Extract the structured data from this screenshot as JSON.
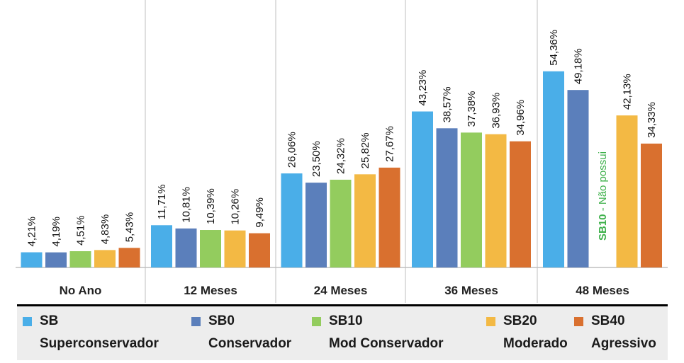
{
  "chart_data": {
    "type": "bar",
    "categories": [
      "No Ano",
      "12 Meses",
      "24 Meses",
      "36 Meses",
      "48 Meses"
    ],
    "series": [
      {
        "name": "SB",
        "description": "Superconservador",
        "color": "#4aaee8",
        "values": [
          4.21,
          11.71,
          26.06,
          43.23,
          54.36
        ],
        "labels": [
          "4,21%",
          "11,71%",
          "26,06%",
          "43,23%",
          "54,36%"
        ]
      },
      {
        "name": "SB0",
        "description": "Conservador",
        "color": "#5b7fbb",
        "values": [
          4.19,
          10.81,
          23.5,
          38.57,
          49.18
        ],
        "labels": [
          "4,19%",
          "10,81%",
          "23,50%",
          "38,57%",
          "49,18%"
        ]
      },
      {
        "name": "SB10",
        "description": "Mod Conservador",
        "color": "#93cc5e",
        "values": [
          4.51,
          10.39,
          24.32,
          37.38,
          null
        ],
        "labels": [
          "4,51%",
          "10,39%",
          "24,32%",
          "37,38%",
          ""
        ]
      },
      {
        "name": "SB20",
        "description": "Moderado",
        "color": "#f3b944",
        "values": [
          4.83,
          10.26,
          25.82,
          36.93,
          42.13
        ],
        "labels": [
          "4,83%",
          "10,26%",
          "25,82%",
          "36,93%",
          "42,13%"
        ]
      },
      {
        "name": "SB40",
        "description": "Agressivo",
        "color": "#d9702f",
        "values": [
          5.43,
          9.49,
          27.67,
          34.96,
          34.33
        ],
        "labels": [
          "5,43%",
          "9,49%",
          "27,67%",
          "34,96%",
          "34,33%"
        ]
      }
    ],
    "annotation": {
      "bold": "SB10",
      "rest": " - Não possui",
      "color": "#3db04a"
    },
    "ylim": [
      0,
      60
    ],
    "gridlines": false,
    "legend_position": "bottom",
    "axis_color": "#bfbfbf"
  }
}
